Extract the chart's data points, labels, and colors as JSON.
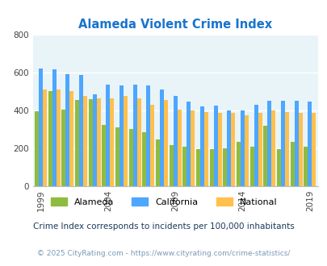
{
  "title": "Alameda Violent Crime Index",
  "title_color": "#1874cd",
  "year_data": [
    [
      1999,
      395,
      620,
      510
    ],
    [
      2000,
      500,
      615,
      510
    ],
    [
      2001,
      405,
      590,
      500
    ],
    [
      2002,
      455,
      585,
      475
    ],
    [
      2003,
      460,
      485,
      465
    ],
    [
      2004,
      325,
      535,
      465
    ],
    [
      2005,
      310,
      530,
      475
    ],
    [
      2006,
      300,
      535,
      465
    ],
    [
      2007,
      285,
      530,
      430
    ],
    [
      2008,
      245,
      510,
      455
    ],
    [
      2009,
      215,
      475,
      405
    ],
    [
      2010,
      210,
      445,
      400
    ],
    [
      2011,
      195,
      420,
      390
    ],
    [
      2012,
      195,
      425,
      385
    ],
    [
      2013,
      200,
      400,
      385
    ],
    [
      2014,
      235,
      400,
      375
    ],
    [
      2015,
      210,
      430,
      385
    ],
    [
      2016,
      320,
      450,
      400
    ],
    [
      2017,
      195,
      450,
      390
    ],
    [
      2018,
      235,
      450,
      385
    ],
    [
      2019,
      210,
      445,
      385
    ]
  ],
  "alameda_color": "#8fbc3f",
  "california_color": "#4da6ff",
  "national_color": "#ffc04c",
  "background_color": "#e8f4f8",
  "ylim": [
    0,
    800
  ],
  "yticks": [
    0,
    200,
    400,
    600,
    800
  ],
  "tick_years": [
    1999,
    2004,
    2009,
    2014,
    2019
  ],
  "legend_labels": [
    "Alameda",
    "California",
    "National"
  ],
  "footnote": "Crime Index corresponds to incidents per 100,000 inhabitants",
  "copyright": "© 2025 CityRating.com - https://www.cityrating.com/crime-statistics/",
  "footnote_color": "#1a3a5c",
  "copyright_color": "#7a9ab8"
}
